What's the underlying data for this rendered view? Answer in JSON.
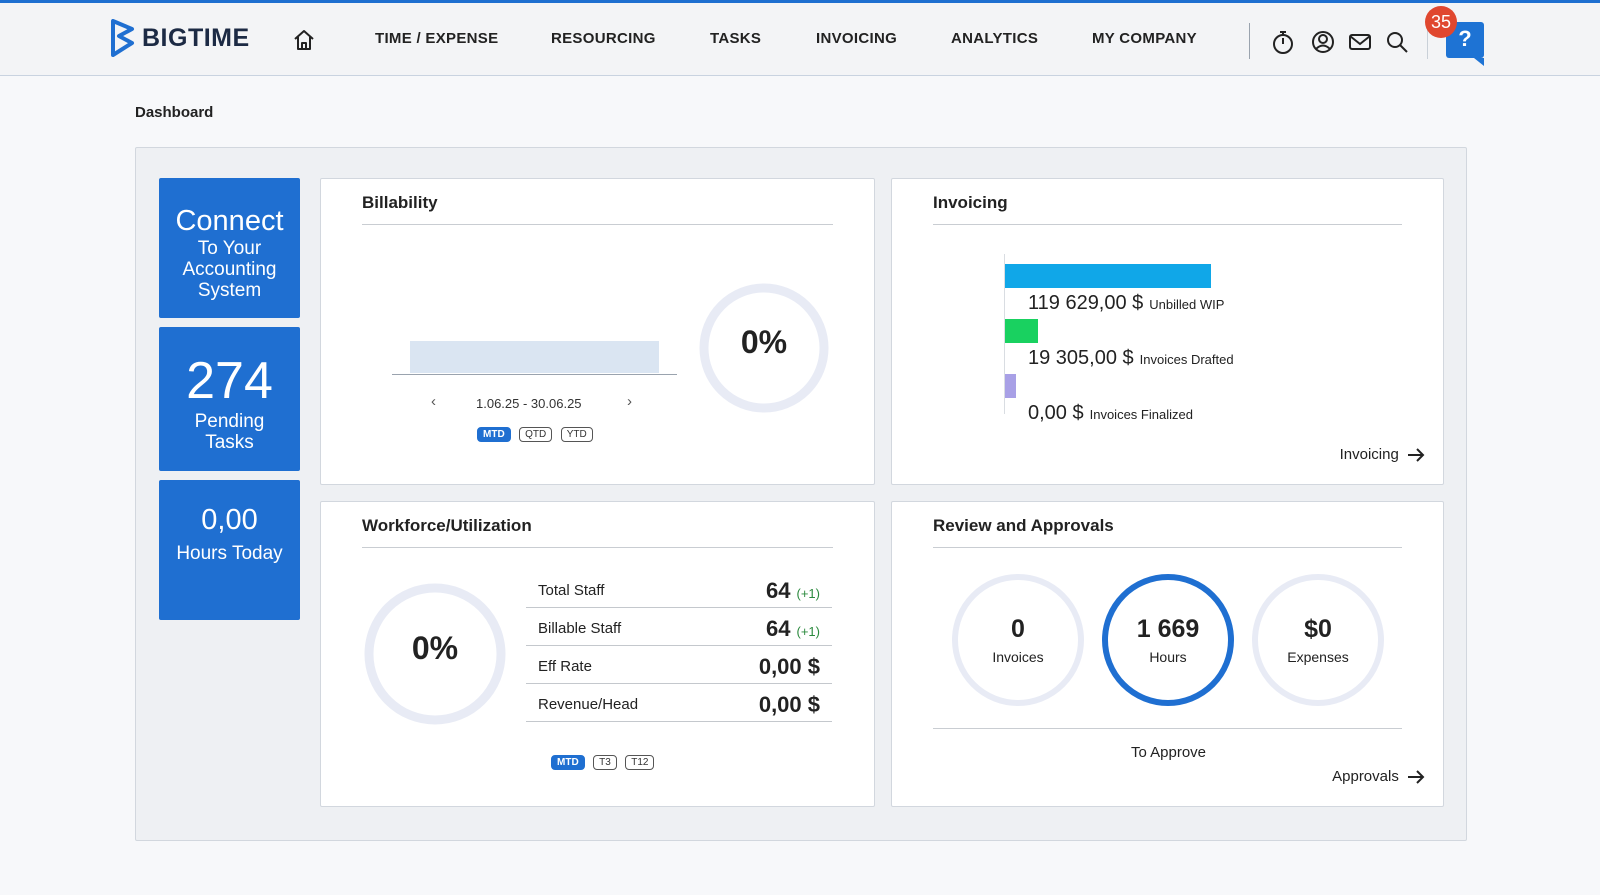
{
  "app": {
    "logo_text": "BIGTIME"
  },
  "nav": [
    {
      "label": "TIME / EXPENSE"
    },
    {
      "label": "RESOURCING"
    },
    {
      "label": "TASKS"
    },
    {
      "label": "INVOICING"
    },
    {
      "label": "ANALYTICS"
    },
    {
      "label": "MY COMPANY"
    }
  ],
  "toolbar": {
    "icons": [
      "timer-icon",
      "user-circle-icon",
      "mail-icon",
      "search-icon"
    ],
    "notification_count": "35",
    "help_label": "?"
  },
  "page": {
    "title": "Dashboard"
  },
  "tiles": {
    "connect": {
      "line1": "Connect",
      "line2": "To Your",
      "line3": "Accounting",
      "line4": "System"
    },
    "pending": {
      "value": "274",
      "line1": "Pending",
      "line2": "Tasks"
    },
    "hours": {
      "value": "0,00",
      "label": "Hours Today"
    }
  },
  "billability": {
    "title": "Billability",
    "percent": "0%",
    "date_range": "1.06.25 - 30.06.25",
    "periods": [
      "MTD",
      "QTD",
      "YTD"
    ],
    "active_period": "MTD"
  },
  "invoicing": {
    "title": "Invoicing",
    "link_label": "Invoicing",
    "chart_data": {
      "type": "bar",
      "categories": [
        "Unbilled WIP",
        "Invoices Drafted",
        "Invoices Finalized"
      ],
      "values": [
        119629.0,
        19305.0,
        0.0
      ],
      "value_labels": [
        "119 629,00 $",
        "19 305,00 $",
        "0,00 $"
      ],
      "colors": [
        "#10a7e8",
        "#19d160",
        "#a8a0e6"
      ]
    }
  },
  "workforce": {
    "title": "Workforce/Utilization",
    "percent": "0%",
    "rows": [
      {
        "label": "Total Staff",
        "value": "64",
        "delta": "(+1)"
      },
      {
        "label": "Billable Staff",
        "value": "64",
        "delta": "(+1)"
      },
      {
        "label": "Eff Rate",
        "value": "0,00 $",
        "delta": ""
      },
      {
        "label": "Revenue/Head",
        "value": "0,00 $",
        "delta": ""
      }
    ],
    "periods": [
      "MTD",
      "T3",
      "T12"
    ],
    "active_period": "MTD"
  },
  "approvals": {
    "title": "Review and Approvals",
    "items": [
      {
        "value": "0",
        "label": "Invoices"
      },
      {
        "value": "1 669",
        "label": "Hours"
      },
      {
        "value": "$0",
        "label": "Expenses"
      }
    ],
    "caption": "To Approve",
    "link_label": "Approvals"
  }
}
